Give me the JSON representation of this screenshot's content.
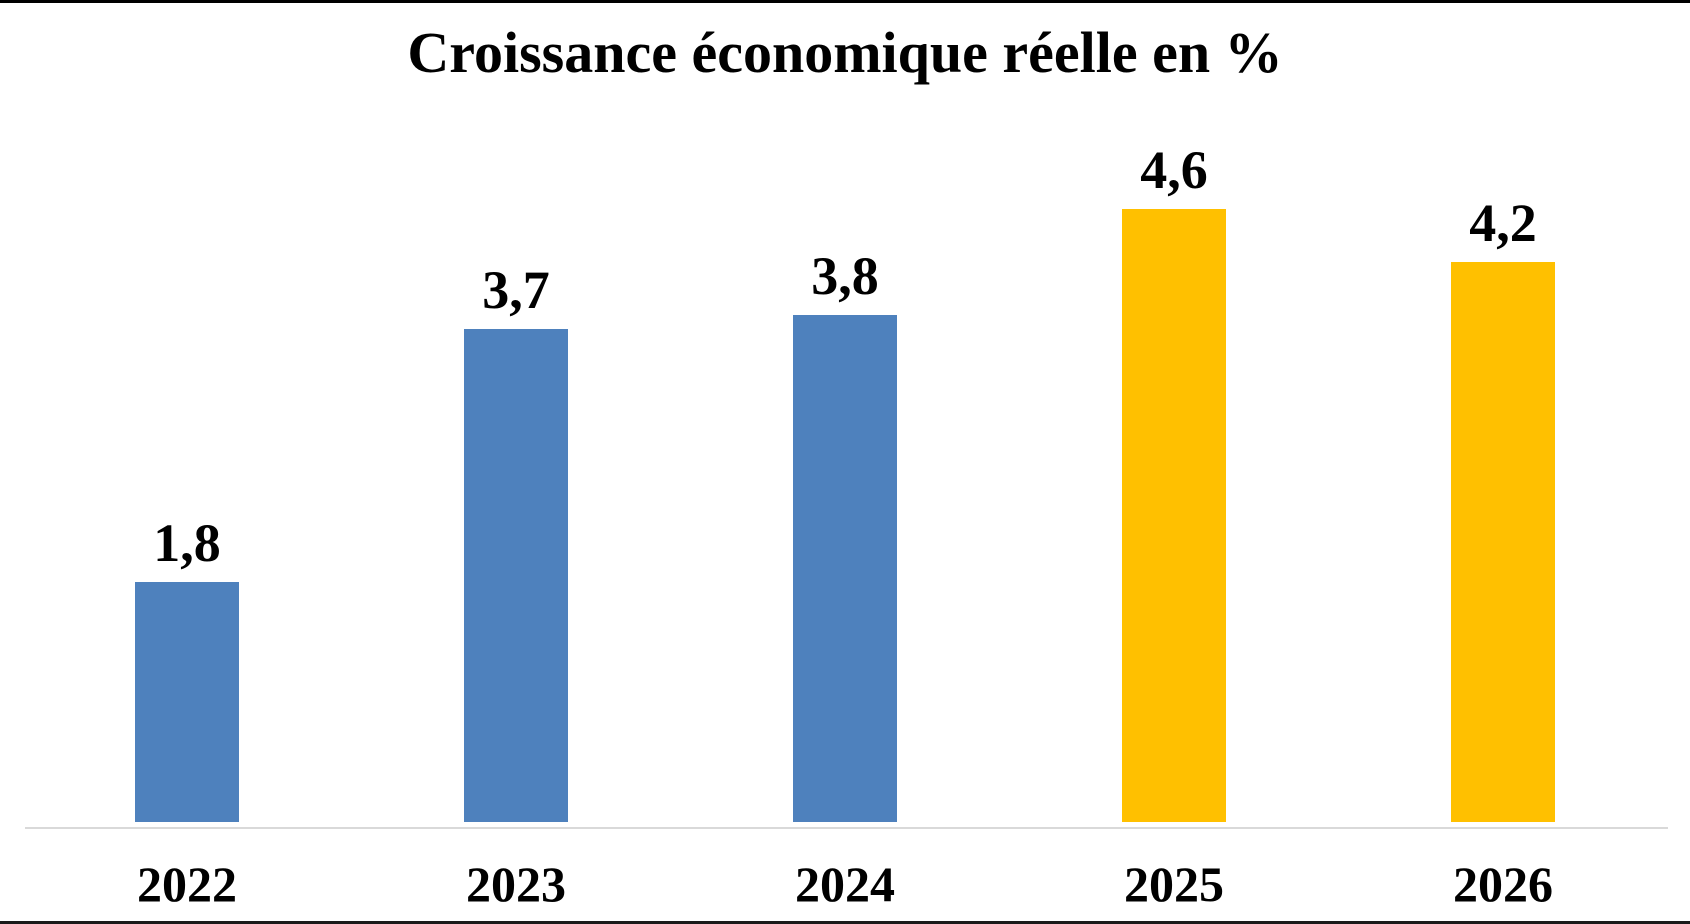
{
  "figure": {
    "background": "#FFFFFF",
    "top_rule_color": "#000000",
    "bottom_rule_color": "#1A1A1A"
  },
  "chart_data": {
    "type": "bar",
    "title": "Croissance économique réelle en %",
    "categories": [
      "2022",
      "2023",
      "2024",
      "2025",
      "2026"
    ],
    "values": [
      1.8,
      3.7,
      3.8,
      4.6,
      4.2
    ],
    "value_labels": [
      "1,8",
      "3,7",
      "3,8",
      "4,6",
      "4,2"
    ],
    "bar_colors": [
      "#4E81BD",
      "#4E81BD",
      "#4E81BD",
      "#FFC000",
      "#FFC000"
    ],
    "series": [
      {
        "name": "blue-bars",
        "years": [
          "2022",
          "2023",
          "2024"
        ],
        "color": "#4E81BD"
      },
      {
        "name": "gold-bars",
        "years": [
          "2025",
          "2026"
        ],
        "color": "#FFC000"
      }
    ],
    "xlabel": "",
    "ylabel": "",
    "ylim": [
      0,
      5.5
    ],
    "grid": false,
    "legend_position": "none",
    "axis_line_color": "#D9D9D9",
    "text_color": "#000000",
    "decimal_separator": ","
  }
}
